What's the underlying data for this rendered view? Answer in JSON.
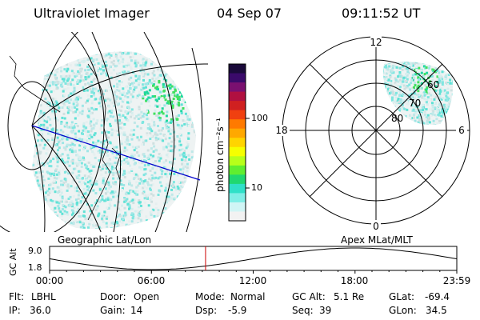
{
  "header": {
    "instrument": "Ultraviolet Imager",
    "date": "04 Sep 07",
    "time": "09:11:52 UT"
  },
  "colorbar": {
    "label": "photon cm⁻²s⁻¹",
    "ticks": [
      "100",
      "10"
    ],
    "colors": [
      "#1a0a3a",
      "#3a0a6a",
      "#7a1070",
      "#b01040",
      "#d02020",
      "#f04010",
      "#ff7a00",
      "#ffa800",
      "#ffd400",
      "#f6ff00",
      "#b8ff1a",
      "#60ee30",
      "#20d870",
      "#30e0c8",
      "#80eee6",
      "#d0f5f5",
      "#f2f2f2"
    ]
  },
  "geo_panel": {
    "caption": "Geographic Lat/Lon"
  },
  "polar_panel": {
    "caption": "Apex MLat/MLT",
    "mlt_labels": {
      "top": "12",
      "left": "18",
      "right": "6",
      "bottom": "0"
    },
    "lat_labels": [
      "60",
      "70",
      "80"
    ]
  },
  "altitude_plot": {
    "ylabel": "GC Alt",
    "yticks": [
      "9.0",
      "1.8"
    ],
    "xticks": [
      "00:00",
      "06:00",
      "12:00",
      "18:00",
      "23:59"
    ],
    "current_time_fraction": 0.383,
    "marker_color": "#cc0000"
  },
  "params": {
    "row1": [
      {
        "label": "Flt:",
        "value": "LBHL"
      },
      {
        "label": "Door:",
        "value": "Open"
      },
      {
        "label": "Mode:",
        "value": "Normal"
      },
      {
        "label": "GC Alt:",
        "value": "5.1 Re"
      },
      {
        "label": "GLat:",
        "value": "-69.4"
      }
    ],
    "row2": [
      {
        "label": "IP:",
        "value": "36.0"
      },
      {
        "label": "Gain:",
        "value": "14"
      },
      {
        "label": "Dsp:",
        "value": "-5.9"
      },
      {
        "label": "Seq:",
        "value": "39"
      },
      {
        "label": "GLon:",
        "value": "34.5"
      }
    ]
  }
}
